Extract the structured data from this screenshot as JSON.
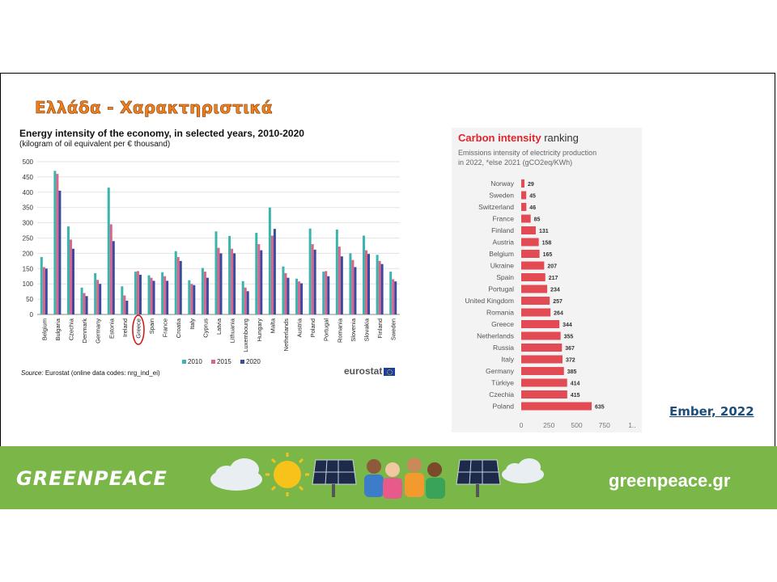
{
  "slide": {
    "title": "Ελλάδα - Χαρακτηριστικά",
    "citation": "Ember, 2022"
  },
  "footer": {
    "brand": "GREENPEACE",
    "website": "greenpeace.gr"
  },
  "colors": {
    "series_2010": "#3cb4ae",
    "series_2015": "#d9668a",
    "series_2020": "#3a4aa0",
    "carbon_bar": "#e34b54",
    "title_orange": "#f07f1f",
    "footer_green": "#7ab648"
  },
  "chart_data": [
    {
      "type": "bar",
      "title": "Energy intensity of the economy, in selected years, 2010-2020",
      "subtitle": "(kilogram of oil equivalent per € thousand)",
      "source_label": "Source:",
      "source": "Eurostat (online data codes: nrg_ind_ei)",
      "logo": "eurostat",
      "categories": [
        "Belgium",
        "Bulgaria",
        "Czechia",
        "Denmark",
        "Germany",
        "Estonia",
        "Ireland",
        "Greece",
        "Spain",
        "France",
        "Croatia",
        "Italy",
        "Cyprus",
        "Latvia",
        "Lithuania",
        "Luxembourg",
        "Hungary",
        "Malta",
        "Netherlands",
        "Austria",
        "Poland",
        "Portugal",
        "Romania",
        "Slovenia",
        "Slovakia",
        "Finland",
        "Sweden"
      ],
      "highlight": "Greece",
      "series": [
        {
          "name": "2010",
          "values": [
            188,
            470,
            288,
            88,
            135,
            415,
            92,
            140,
            128,
            138,
            207,
            112,
            152,
            272,
            257,
            109,
            267,
            350,
            157,
            117,
            281,
            140,
            278,
            200,
            258,
            195,
            140
          ]
        },
        {
          "name": "2015",
          "values": [
            155,
            460,
            245,
            70,
            113,
            295,
            62,
            142,
            120,
            125,
            188,
            100,
            140,
            218,
            215,
            88,
            230,
            258,
            135,
            108,
            230,
            142,
            222,
            178,
            210,
            175,
            115
          ]
        },
        {
          "name": "2020",
          "values": [
            150,
            405,
            215,
            60,
            100,
            240,
            45,
            130,
            110,
            110,
            175,
            96,
            120,
            200,
            200,
            76,
            210,
            280,
            120,
            102,
            212,
            125,
            190,
            155,
            198,
            165,
            108
          ]
        }
      ],
      "yticks": [
        0,
        50,
        100,
        150,
        200,
        250,
        300,
        350,
        400,
        450,
        500
      ],
      "ylim": [
        0,
        500
      ],
      "grid": true,
      "legend": "bottom"
    },
    {
      "type": "bar",
      "orientation": "horizontal",
      "title_accent": "Carbon intensity",
      "title_rest": " ranking",
      "subtitle_line1": "Emissions intensity of electricity production",
      "subtitle_line2": "in 2022, *else 2021 (gCO2eq/KWh)",
      "categories": [
        "Norway",
        "Sweden",
        "Switzerland",
        "France",
        "Finland",
        "Austria",
        "Belgium",
        "Ukraine",
        "Spain",
        "Portugal",
        "United Kingdom",
        "Romania",
        "Greece",
        "Netherlands",
        "Russia",
        "Italy",
        "Germany",
        "Türkiye",
        "Czechia",
        "Poland"
      ],
      "values": [
        29,
        45,
        46,
        85,
        131,
        158,
        165,
        207,
        217,
        234,
        257,
        264,
        344,
        355,
        367,
        372,
        385,
        414,
        415,
        635
      ],
      "xticks": [
        "0",
        "250",
        "500",
        "750",
        "1.."
      ],
      "xlim": [
        0,
        1000
      ]
    }
  ]
}
